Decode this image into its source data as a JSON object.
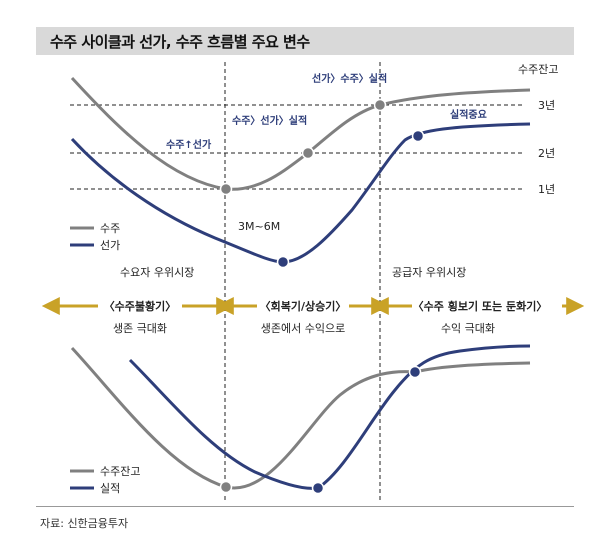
{
  "title": "수주 사이클과 선가, 수주 흐름별 주요 변수",
  "top_chart": {
    "y_axis_title": "수주잔고",
    "levels": [
      "3년",
      "2년",
      "1년"
    ],
    "annotations": {
      "order_price": "수주↑선가",
      "order_price_perf": "수주〉선가〉실적",
      "price_order_perf": "선가〉수주〉실적",
      "perf_important": "실적중요",
      "lag": "3M~6M"
    },
    "legend": [
      {
        "name": "수주",
        "color": "#808080"
      },
      {
        "name": "선가",
        "color": "#2e3e7a"
      }
    ],
    "markets": {
      "buyer": "수요자 우위시장",
      "supplier": "공급자 우위시장"
    }
  },
  "phases": [
    {
      "label": "〈수주불황기〉",
      "sub": "생존 극대화"
    },
    {
      "label": "〈회복기/상승기〉",
      "sub": "생존에서 수익으로"
    },
    {
      "label": "〈수주 횡보기 또는 둔화기〉",
      "sub": "수익 극대화"
    }
  ],
  "bottom_chart": {
    "legend": [
      {
        "name": "수주잔고",
        "color": "#808080"
      },
      {
        "name": "실적",
        "color": "#2e3e7a"
      }
    ]
  },
  "colors": {
    "gray": "#808080",
    "navy": "#2e3e7a",
    "gold": "#c9a227"
  },
  "source": "자료: 신한금융투자"
}
